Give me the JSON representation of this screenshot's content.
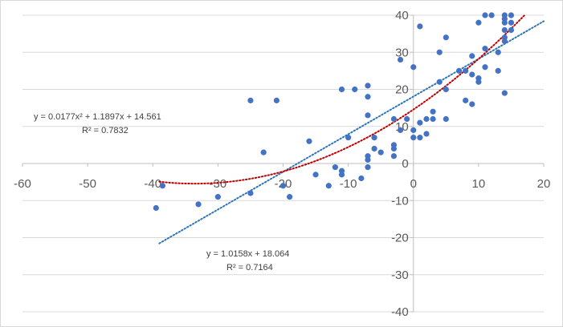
{
  "chart_data": {
    "type": "scatter",
    "title": "",
    "xlabel": "",
    "ylabel": "",
    "xlim": [
      -60,
      20
    ],
    "ylim": [
      -40,
      40
    ],
    "x_ticks": [
      -60,
      -50,
      -40,
      -30,
      -20,
      -10,
      0,
      10,
      20
    ],
    "y_ticks": [
      -40,
      -30,
      -20,
      -10,
      0,
      10,
      20,
      30,
      40
    ],
    "grid": {
      "horizontal": true,
      "vertical": false
    },
    "colors": {
      "points": "#4472C4",
      "linear_trend": "#2E75B6",
      "poly_trend": "#C00000",
      "grid": "#d9d9d9",
      "axis": "#bfbfbf"
    },
    "series": [
      {
        "points": [
          [
            -38.5,
            -6
          ],
          [
            -39.5,
            -12
          ],
          [
            -33,
            -11
          ],
          [
            -30,
            -9
          ],
          [
            -25,
            -8
          ],
          [
            -25,
            17
          ],
          [
            -23,
            3
          ],
          [
            -21,
            17
          ],
          [
            -20,
            -6
          ],
          [
            -19,
            -9
          ],
          [
            -16,
            6
          ],
          [
            -15,
            -3
          ],
          [
            -13,
            -6
          ],
          [
            -12,
            -1
          ],
          [
            -11,
            -3
          ],
          [
            -11,
            -2
          ],
          [
            -11,
            20
          ],
          [
            -10,
            7
          ],
          [
            -9,
            20
          ],
          [
            -8,
            -4
          ],
          [
            -7,
            -1
          ],
          [
            -7,
            1
          ],
          [
            -7,
            2
          ],
          [
            -7,
            13
          ],
          [
            -7,
            18
          ],
          [
            -7,
            21
          ],
          [
            -6,
            4
          ],
          [
            -6,
            7
          ],
          [
            -5,
            3
          ],
          [
            -3,
            2
          ],
          [
            -3,
            4
          ],
          [
            -3,
            5
          ],
          [
            -3,
            12
          ],
          [
            -2,
            9
          ],
          [
            -2,
            28
          ],
          [
            -1,
            12
          ],
          [
            0,
            7
          ],
          [
            0,
            9
          ],
          [
            0,
            26
          ],
          [
            1,
            7
          ],
          [
            1,
            11
          ],
          [
            1,
            37
          ],
          [
            2,
            8
          ],
          [
            2,
            12
          ],
          [
            3,
            12
          ],
          [
            3,
            14
          ],
          [
            4,
            22
          ],
          [
            4,
            30
          ],
          [
            5,
            12
          ],
          [
            5,
            20
          ],
          [
            5,
            34
          ],
          [
            7,
            25
          ],
          [
            8,
            17
          ],
          [
            8,
            25
          ],
          [
            9,
            16
          ],
          [
            9,
            24
          ],
          [
            9,
            29
          ],
          [
            10,
            22
          ],
          [
            10,
            23
          ],
          [
            10,
            38
          ],
          [
            11,
            26
          ],
          [
            11,
            31
          ],
          [
            11,
            40
          ],
          [
            12,
            40
          ],
          [
            13,
            25
          ],
          [
            13,
            30
          ],
          [
            14,
            19
          ],
          [
            14,
            33
          ],
          [
            14,
            34
          ],
          [
            14,
            36
          ],
          [
            14,
            38
          ],
          [
            14,
            39
          ],
          [
            14,
            40
          ],
          [
            15,
            36
          ],
          [
            15,
            38
          ],
          [
            15,
            40
          ]
        ]
      }
    ],
    "trendlines": [
      {
        "kind": "linear",
        "slope": 1.0158,
        "intercept": 18.064,
        "x_range": [
          -39,
          20
        ],
        "equation": "y = 1.0158x + 18.064",
        "r2": "R² = 0.7164"
      },
      {
        "kind": "polynomial",
        "a": 0.0177,
        "b": 1.1897,
        "c": 14.561,
        "x_range": [
          -39,
          17
        ],
        "equation": "y = 0.0177x² + 1.1897x + 14.561",
        "r2": "R² = 0.7832"
      }
    ]
  }
}
